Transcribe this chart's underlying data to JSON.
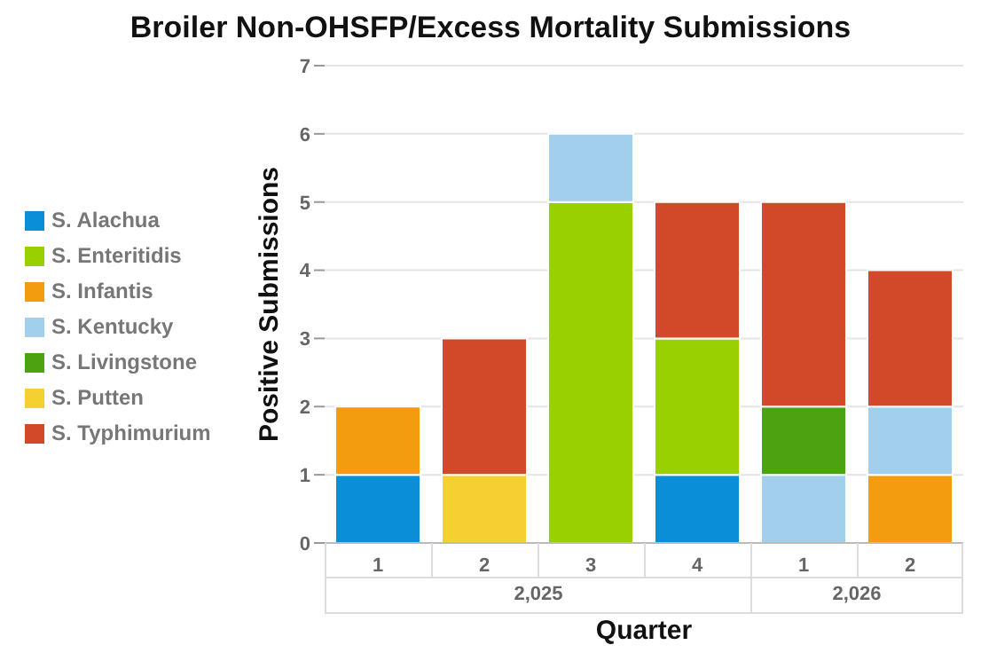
{
  "chart_data": {
    "type": "bar",
    "title": "Broiler Non-OHSFP/Excess Mortality Submissions",
    "xlabel": "Quarter",
    "ylabel": "Positive Submissions",
    "categories": [
      "1",
      "2",
      "3",
      "4",
      "1",
      "2"
    ],
    "annotations": [
      "2,025",
      "2,026"
    ],
    "stacked": true,
    "series": [
      {
        "name": "S. Alachua",
        "color": "#0a8fd6",
        "values": [
          1,
          null,
          null,
          1,
          null,
          null
        ]
      },
      {
        "name": "S. Enteritidis",
        "color": "#99d100",
        "values": [
          null,
          null,
          5,
          2,
          null,
          null
        ]
      },
      {
        "name": "S. Infantis",
        "color": "#f39c0f",
        "values": [
          1,
          null,
          null,
          null,
          null,
          1
        ]
      },
      {
        "name": "S. Kentucky",
        "color": "#a1cfec",
        "values": [
          null,
          null,
          1,
          null,
          1,
          1
        ]
      },
      {
        "name": "S. Livingstone",
        "color": "#4aa30f",
        "values": [
          null,
          null,
          null,
          null,
          1,
          null
        ]
      },
      {
        "name": "S. Putten",
        "color": "#f5d031",
        "values": [
          null,
          1,
          null,
          null,
          null,
          null
        ]
      },
      {
        "name": "S. Typhimurium",
        "color": "#d2492a",
        "values": [
          null,
          2,
          null,
          2,
          3,
          2
        ]
      }
    ],
    "ylim": [
      0,
      7
    ],
    "yticks": [
      0,
      1,
      2,
      3,
      4,
      5,
      6,
      7
    ],
    "grid": "y",
    "legend": "left"
  }
}
